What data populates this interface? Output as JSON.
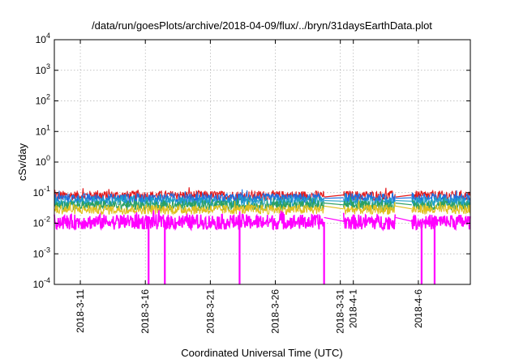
{
  "chart_data": {
    "type": "line",
    "title": "/data/run/goesPlots/archive/2018-04-09/flux/../bryn/31daysEarthData.plot",
    "xlabel": "Coordinated Universal Time (UTC)",
    "ylabel": "cSv/day",
    "yscale": "log",
    "ylim": [
      0.0001,
      10000
    ],
    "xlim": [
      "2018-03-09",
      "2018-04-10"
    ],
    "grid": true,
    "y_ticks": [
      {
        "value": 0.0001,
        "base": "10",
        "exp": "-4"
      },
      {
        "value": 0.001,
        "base": "10",
        "exp": "-3"
      },
      {
        "value": 0.01,
        "base": "10",
        "exp": "-2"
      },
      {
        "value": 0.1,
        "base": "10",
        "exp": "-1"
      },
      {
        "value": 1,
        "base": "10",
        "exp": "0"
      },
      {
        "value": 10,
        "base": "10",
        "exp": "1"
      },
      {
        "value": 100,
        "base": "10",
        "exp": "2"
      },
      {
        "value": 1000,
        "base": "10",
        "exp": "3"
      },
      {
        "value": 10000,
        "base": "10",
        "exp": "4"
      }
    ],
    "x_ticks": [
      "2018-3-11",
      "2018-3-16",
      "2018-3-21",
      "2018-3-26",
      "2018-3-31",
      "2018-4-1",
      "2018-4-6"
    ],
    "data_segments": [
      {
        "start": "2018-03-09",
        "end": "2018-03-29T18:00"
      },
      {
        "start": "2018-03-31T06:00",
        "end": "2018-04-04T06:00"
      },
      {
        "start": "2018-04-05T12:00",
        "end": "2018-04-10"
      }
    ],
    "dropouts": [
      "2018-03-16T06:00",
      "2018-03-17T12:00",
      "2018-03-23T06:00",
      "2018-03-29T18:00",
      "2018-04-06T06:00",
      "2018-04-07T06:00"
    ],
    "series": [
      {
        "color": "#e41a1c",
        "level": 0.08
      },
      {
        "color": "#1f6fe0",
        "level": 0.065
      },
      {
        "color": "#1fa0c8",
        "level": 0.05
      },
      {
        "color": "#2ca060",
        "level": 0.038
      },
      {
        "color": "#e0c020",
        "level": 0.028
      },
      {
        "color": "#ff00ff",
        "level": 0.011
      }
    ]
  }
}
